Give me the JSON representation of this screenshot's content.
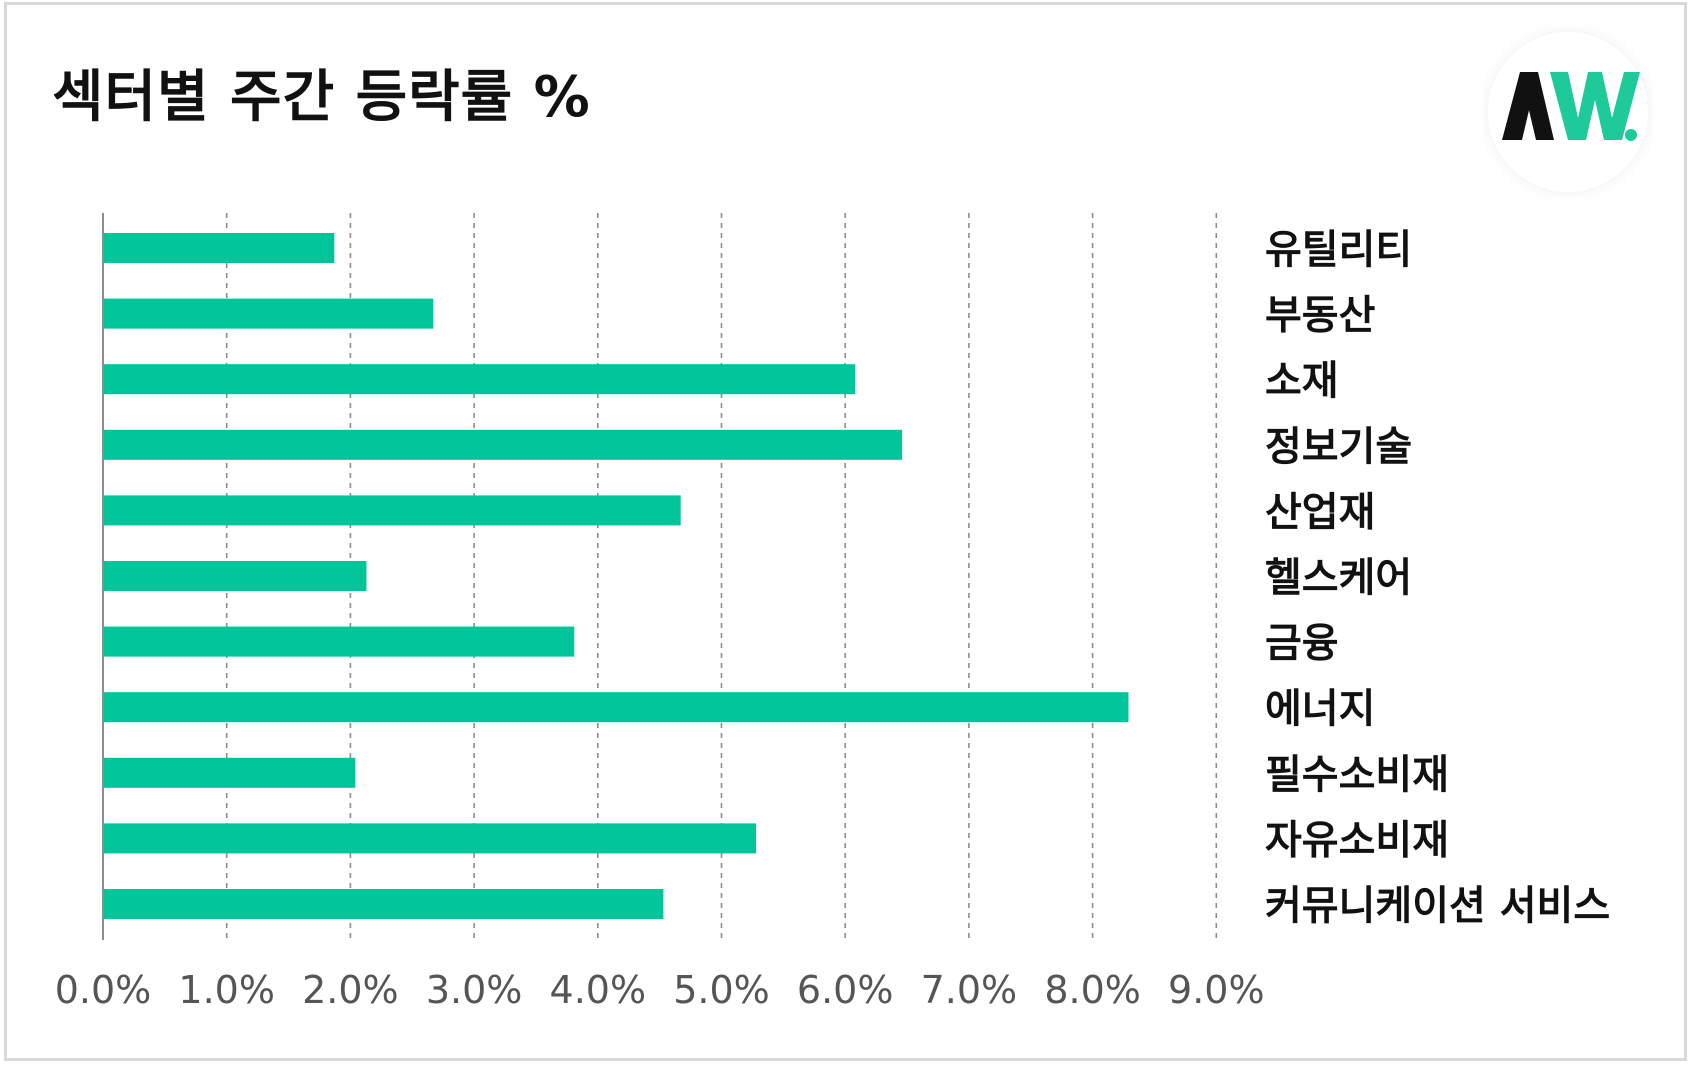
{
  "title": "섹터별 주간 등락률 %",
  "logo": {
    "icon": "aw-logo-icon",
    "text": "AW.",
    "colors": {
      "dark": "#111111",
      "accent": "#1ec99a"
    }
  },
  "colors": {
    "bar": "#00c49a",
    "grid": "#8c8c8c",
    "axis": "#8c8c8c"
  },
  "chart_data": {
    "type": "bar",
    "orientation": "horizontal",
    "title": "섹터별 주간 등락률 %",
    "categories": [
      "유틸리티",
      "부동산",
      "소재",
      "정보기술",
      "산업재",
      "헬스케어",
      "금융",
      "에너지",
      "필수소비재",
      "자유소비재",
      "커뮤니케이션 서비스"
    ],
    "values": [
      1.87,
      2.67,
      6.08,
      6.46,
      4.67,
      2.13,
      3.81,
      8.29,
      2.04,
      5.28,
      4.53
    ],
    "xlim": [
      0,
      9
    ],
    "xticks": [
      "0.0%",
      "1.0%",
      "2.0%",
      "3.0%",
      "4.0%",
      "5.0%",
      "6.0%",
      "7.0%",
      "8.0%",
      "9.0%"
    ],
    "xlabel": "",
    "ylabel": "",
    "grid": "vertical-dashed",
    "legend": "none",
    "category_label_position": "right"
  }
}
